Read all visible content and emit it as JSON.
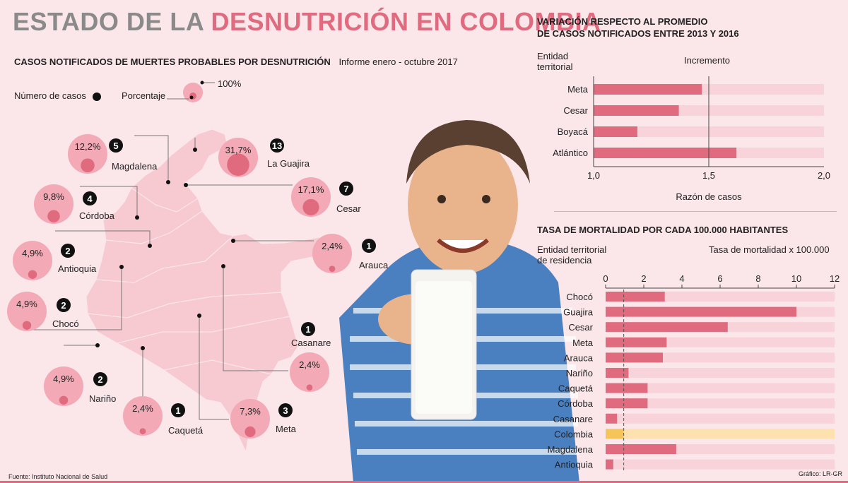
{
  "header": {
    "title_part1": "ESTADO DE LA",
    "title_part2": "DESNUTRICIÓN EN COLOMBIA",
    "subtitle": "CASOS NOTIFICADOS DE MUERTES PROBABLES POR DESNUTRICIÓN",
    "subtitle_note": "Informe enero - octubre 2017"
  },
  "legend": {
    "cases_label": "Número de casos",
    "pct_label": "Porcentaje",
    "pct_full": "100%"
  },
  "map_cases": [
    {
      "name": "Magdalena",
      "pct": 12.2,
      "pct_label": "12,2%",
      "cases": 5
    },
    {
      "name": "La Guajira",
      "pct": 31.7,
      "pct_label": "31,7%",
      "cases": 13
    },
    {
      "name": "Córdoba",
      "pct": 9.8,
      "pct_label": "9,8%",
      "cases": 4
    },
    {
      "name": "Cesar",
      "pct": 17.1,
      "pct_label": "17,1%",
      "cases": 7
    },
    {
      "name": "Antioquia",
      "pct": 4.9,
      "pct_label": "4,9%",
      "cases": 2
    },
    {
      "name": "Arauca",
      "pct": 2.4,
      "pct_label": "2,4%",
      "cases": 1
    },
    {
      "name": "Chocó",
      "pct": 4.9,
      "pct_label": "4,9%",
      "cases": 2
    },
    {
      "name": "Casanare",
      "pct": 2.4,
      "pct_label": "2,4%",
      "cases": 1
    },
    {
      "name": "Nariño",
      "pct": 4.9,
      "pct_label": "4,9%",
      "cases": 2
    },
    {
      "name": "Caquetá",
      "pct": 2.4,
      "pct_label": "2,4%",
      "cases": 1
    },
    {
      "name": "Meta",
      "pct": 7.3,
      "pct_label": "7,3%",
      "cases": 3
    }
  ],
  "chart_data": [
    {
      "type": "bar",
      "title": "VARIACIÓN RESPECTO AL PROMEDIO DE CASOS NOTIFICADOS ENTRE 2013 Y 2016",
      "category_header": "Entidad territorial",
      "value_header": "Incremento",
      "categories": [
        "Meta",
        "Cesar",
        "Boyacá",
        "Atlántico"
      ],
      "values": [
        1.47,
        1.37,
        1.19,
        1.62
      ],
      "xlim": [
        1.0,
        2.0
      ],
      "xticks": [
        "1,0",
        "1,5",
        "2,0"
      ],
      "xlabel": "Razón de casos",
      "reference": 1.5
    },
    {
      "type": "bar",
      "title": "TASA DE MORTALIDAD POR CADA 100.000 HABITANTES",
      "category_header": "Entidad territorial de residencia",
      "value_header": "Tasa de mortalidad x 100.000",
      "categories": [
        "Chocó",
        "Guajira",
        "Cesar",
        "Meta",
        "Arauca",
        "Nariño",
        "Caquetá",
        "Córdoba",
        "Casanare",
        "Colombia",
        "Magdalena",
        "Antioquia"
      ],
      "values": [
        3.1,
        10.0,
        6.4,
        3.2,
        3.0,
        1.2,
        2.2,
        2.2,
        0.6,
        0.95,
        3.7,
        0.4
      ],
      "highlight": "Colombia",
      "xlim": [
        0,
        12
      ],
      "xticks": [
        "0",
        "2",
        "4",
        "6",
        "8",
        "10",
        "12"
      ],
      "reference": 0.95
    }
  ],
  "colors": {
    "accent": "#e06a7e",
    "title_grey": "#8a8a8a",
    "bar_track": "#f8d3da",
    "highlight": "#f5c55a",
    "highlight_track": "#fde2b0"
  },
  "footer": {
    "source": "Fuente: Instituto Nacional de Salud",
    "credit": "Gráfico: LR-GR"
  }
}
